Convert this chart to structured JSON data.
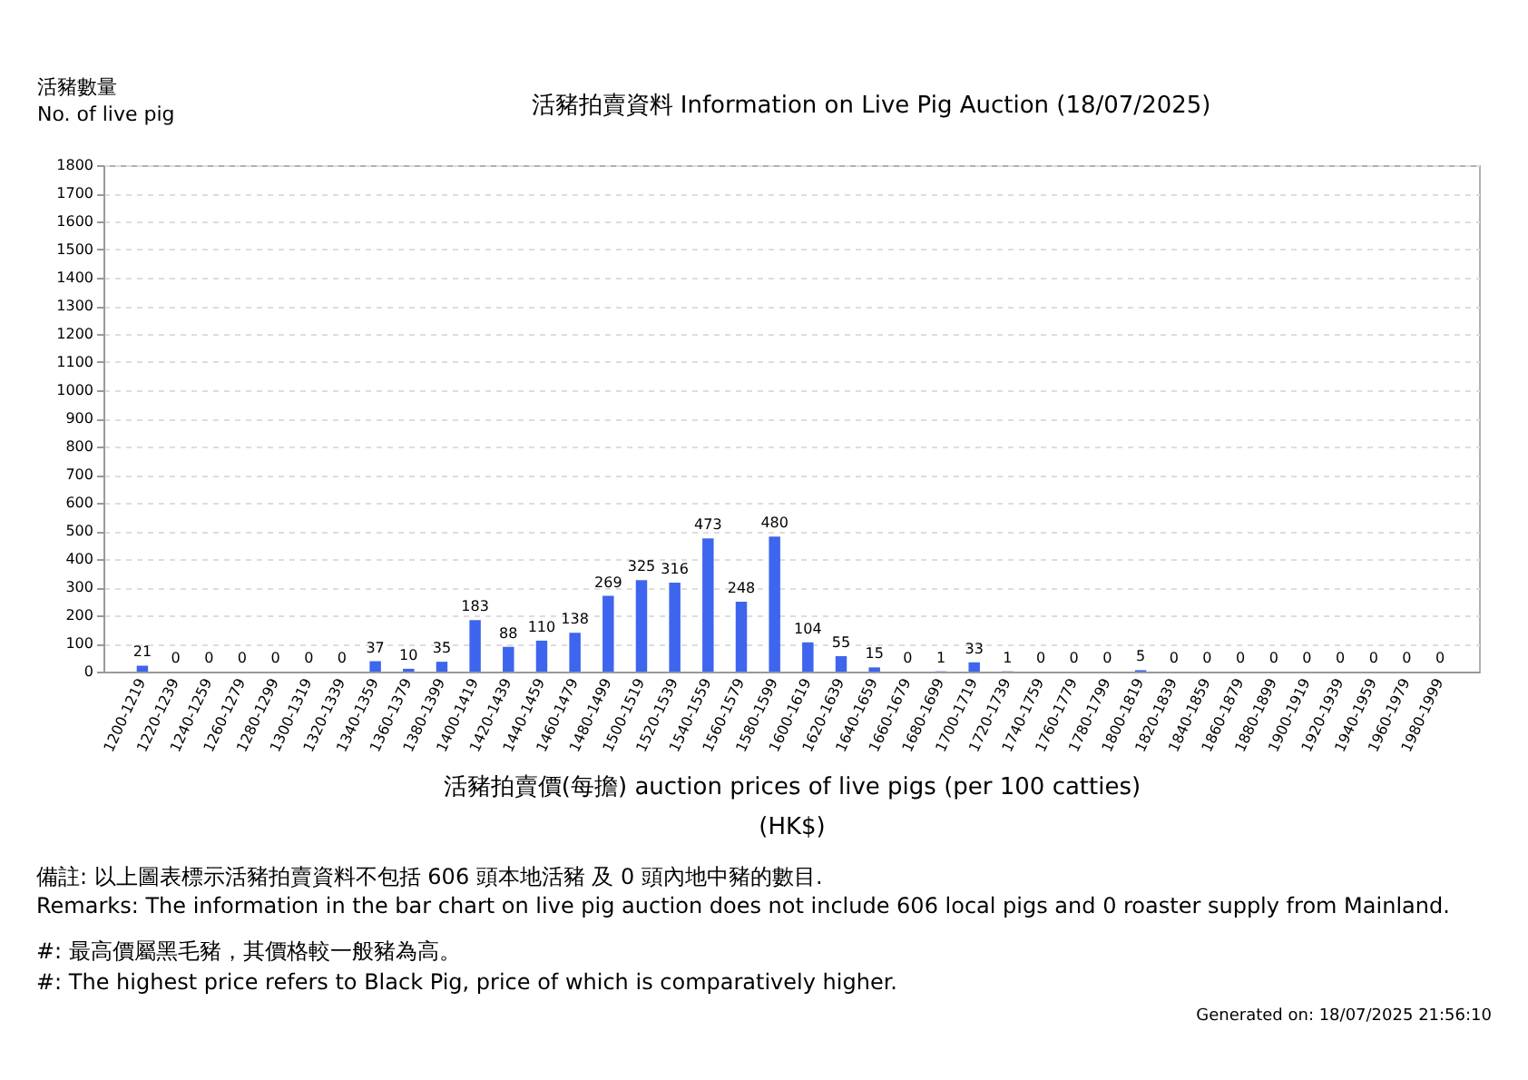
{
  "chart_data": {
    "type": "bar",
    "title": "活豬拍賣資料 Information on Live Pig Auction (18/07/2025)",
    "ylabel": "活豬數量\nNo. of live pig",
    "xlabel": "活豬拍賣價(每擔) auction prices of live pigs (per 100 catties)\n(HK$)",
    "categories": [
      "1200-1219",
      "1220-1239",
      "1240-1259",
      "1260-1279",
      "1280-1299",
      "1300-1319",
      "1320-1339",
      "1340-1359",
      "1360-1379",
      "1380-1399",
      "1400-1419",
      "1420-1439",
      "1440-1459",
      "1460-1479",
      "1480-1499",
      "1500-1519",
      "1520-1539",
      "1540-1559",
      "1560-1579",
      "1580-1599",
      "1600-1619",
      "1620-1639",
      "1640-1659",
      "1660-1679",
      "1680-1699",
      "1700-1719",
      "1720-1739",
      "1740-1759",
      "1760-1779",
      "1780-1799",
      "1800-1819",
      "1820-1839",
      "1840-1859",
      "1860-1879",
      "1880-1899",
      "1900-1919",
      "1920-1939",
      "1940-1959",
      "1960-1979",
      "1980-1999"
    ],
    "values": [
      21,
      0,
      0,
      0,
      0,
      0,
      0,
      37,
      10,
      35,
      183,
      88,
      110,
      138,
      269,
      325,
      316,
      473,
      248,
      480,
      104,
      55,
      15,
      0,
      1,
      33,
      1,
      0,
      0,
      0,
      5,
      0,
      0,
      0,
      0,
      0,
      0,
      0,
      0,
      0
    ],
    "color": "#3d65ee",
    "ylim": [
      0,
      1800
    ],
    "yticks": [
      0,
      100,
      200,
      300,
      400,
      500,
      600,
      700,
      800,
      900,
      1000,
      1100,
      1200,
      1300,
      1400,
      1500,
      1600,
      1700,
      1800
    ],
    "grid": "y",
    "data_labels": true,
    "annotations": [
      "備註: 以上圖表標示活豬拍賣資料不包括 606 頭本地活豬 及 0 頭內地中豬的數目.",
      "Remarks: The information in the bar chart on live pig auction does not include 606 local pigs and 0 roaster supply from Mainland.",
      "#: 最高價屬黑毛豬，其價格較一般豬為高。",
      "#: The highest price refers to Black Pig, price of which is comparatively higher.",
      "Generated on: 18/07/2025 21:56:10"
    ]
  }
}
